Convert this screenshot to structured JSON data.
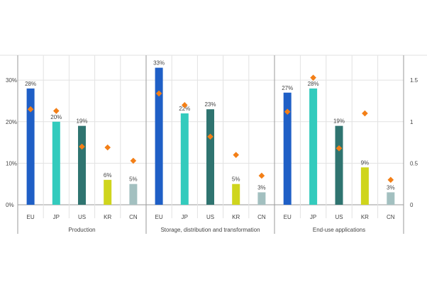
{
  "chart_data": {
    "type": "bar",
    "groups": [
      {
        "name": "Production",
        "categories": [
          "EU",
          "JP",
          "US",
          "KR",
          "CN"
        ],
        "bar_values": [
          28,
          20,
          19,
          6,
          5
        ],
        "bar_labels": [
          "28%",
          "20%",
          "19%",
          "6%",
          "5%"
        ],
        "diamond_values": [
          1.15,
          1.13,
          0.7,
          0.69,
          0.53
        ]
      },
      {
        "name": "Storage, distribution and transformation",
        "categories": [
          "EU",
          "JP",
          "US",
          "KR",
          "CN"
        ],
        "bar_values": [
          33,
          22,
          23,
          5,
          3
        ],
        "bar_labels": [
          "33%",
          "22%",
          "23%",
          "5%",
          "3%"
        ],
        "diamond_values": [
          1.34,
          1.2,
          0.82,
          0.6,
          0.35
        ]
      },
      {
        "name": "End-use applications",
        "categories": [
          "EU",
          "JP",
          "US",
          "KR",
          "CN"
        ],
        "bar_values": [
          27,
          28,
          19,
          9,
          3
        ],
        "bar_labels": [
          "27%",
          "28%",
          "19%",
          "9%",
          "3%"
        ],
        "diamond_values": [
          1.12,
          1.53,
          0.68,
          1.1,
          0.3
        ]
      }
    ],
    "left_axis": {
      "ticks": [
        "0%",
        "10%",
        "20%",
        "30%"
      ],
      "tick_values": [
        0,
        10,
        20,
        30
      ],
      "ylim": [
        0,
        36
      ]
    },
    "right_axis": {
      "ticks": [
        "0",
        "0.5",
        "1",
        "1.5"
      ],
      "tick_values": [
        0,
        0.5,
        1,
        1.5
      ],
      "ylim": [
        0,
        1.8
      ]
    },
    "grid": true,
    "colors": {
      "EU": "#1f5fc6",
      "JP": "#33cbbd",
      "US": "#2f7470",
      "KR": "#cfd51d",
      "CN": "#a3c0c0",
      "diamond": "#f37f17",
      "grid": "#e2e2e2",
      "axis": "#9a9a9a",
      "text": "#444444"
    }
  }
}
